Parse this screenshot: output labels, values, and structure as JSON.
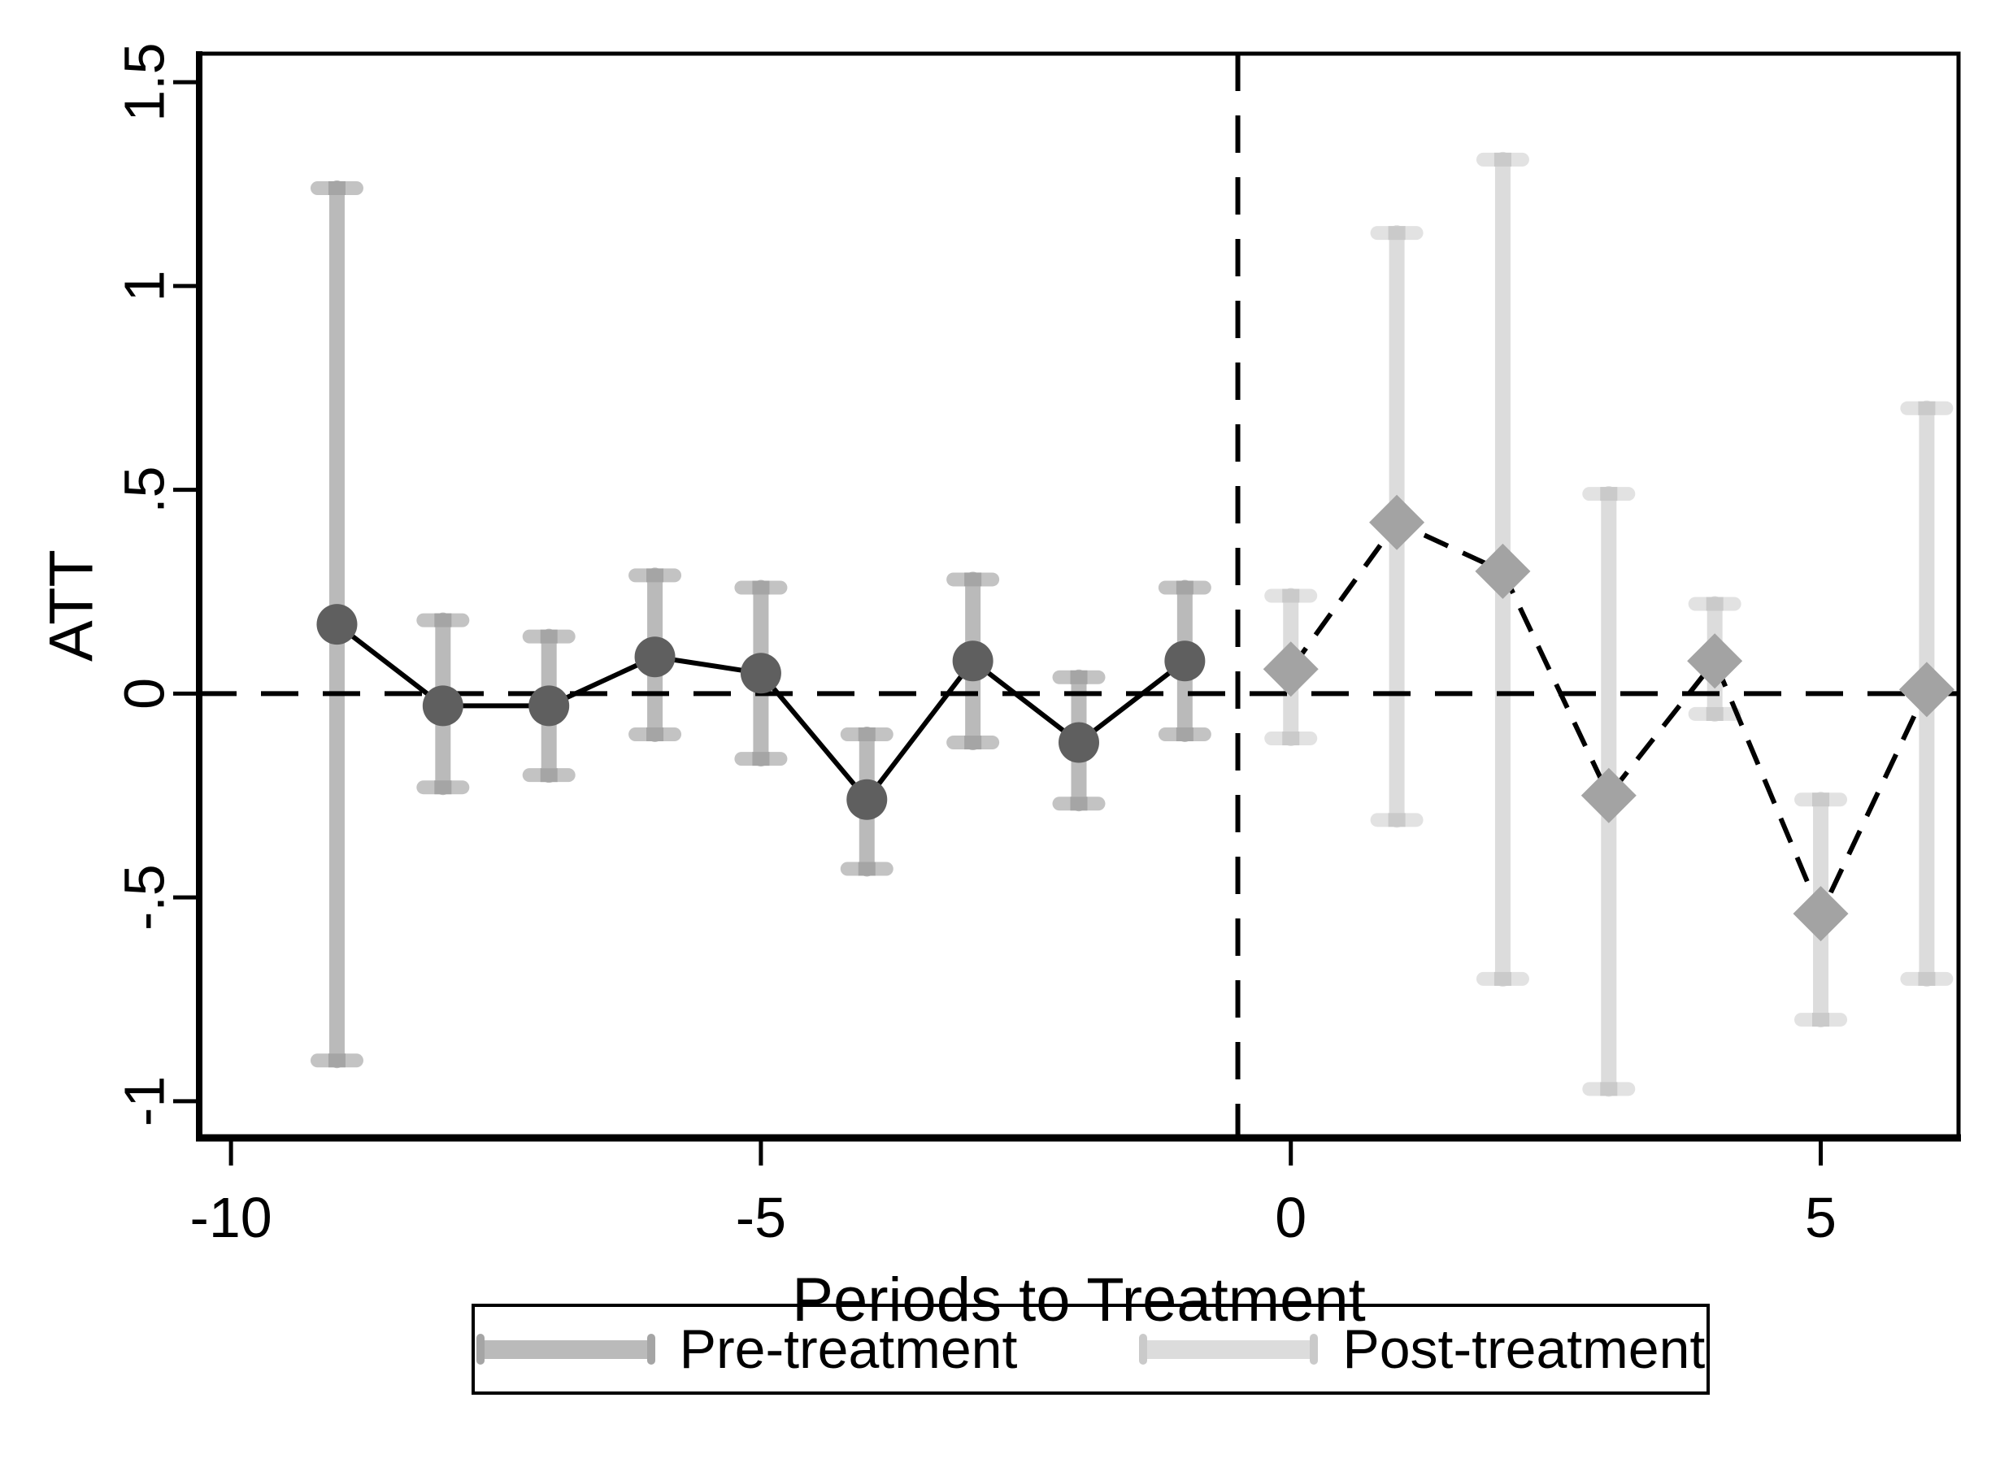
{
  "figure": {
    "ylabel": "ATT",
    "xlabel": "Periods to Treatment"
  },
  "axes": {
    "y_tick_labels": [
      "1.5",
      "1",
      ".5",
      "0",
      "-.5",
      "-1"
    ],
    "y_tick_values": [
      1.5,
      1,
      0.5,
      0,
      -0.5,
      -1
    ],
    "x_tick_labels": [
      "-10",
      "-5",
      "0",
      "5"
    ],
    "x_tick_values": [
      -10,
      -5,
      0,
      5
    ]
  },
  "legend": {
    "pre_label": "Pre-treatment",
    "post_label": "Post-treatment"
  },
  "colors": {
    "background": "#ffffff",
    "axis": "#000000",
    "text": "#000000",
    "reference_line": "#000000",
    "pre_marker": "#5f5f5f",
    "pre_line": "#000000",
    "pre_ci_bar": "#bababa",
    "pre_ci_cap": "#c3c3c3",
    "pre_ci_overlap": "#a5a5a5",
    "post_marker": "#a3a3a3",
    "post_line": "#000000",
    "post_ci_bar": "#dcdcdc",
    "post_ci_cap": "#e2e2e2",
    "post_ci_overlap": "#cacaca"
  },
  "chart_data": {
    "type": "line",
    "title": "",
    "xlabel": "Periods to Treatment",
    "ylabel": "ATT",
    "xlim": [
      -10.3,
      6.3
    ],
    "ylim": [
      -1.09,
      1.57
    ],
    "grid": false,
    "legend_position": "bottom",
    "error_bars": true,
    "reference_lines": {
      "hline_y": 0,
      "vline_x": -0.5,
      "style": "dashed"
    },
    "series": [
      {
        "name": "Pre-treatment",
        "marker": "circle",
        "line_style": "solid",
        "x": [
          -9,
          -8,
          -7,
          -6,
          -5,
          -4,
          -3,
          -2,
          -1
        ],
        "y": [
          0.17,
          -0.03,
          -0.03,
          0.09,
          0.05,
          -0.26,
          0.08,
          -0.12,
          0.08
        ],
        "ci_low": [
          -0.9,
          -0.23,
          -0.2,
          -0.1,
          -0.16,
          -0.43,
          -0.12,
          -0.27,
          -0.1
        ],
        "ci_high": [
          1.24,
          0.18,
          0.14,
          0.29,
          0.26,
          -0.1,
          0.28,
          0.04,
          0.26
        ]
      },
      {
        "name": "Post-treatment",
        "marker": "diamond",
        "line_style": "dashed",
        "x": [
          0,
          1,
          2,
          3,
          4,
          5,
          6
        ],
        "y": [
          0.06,
          0.42,
          0.3,
          -0.25,
          0.08,
          -0.54,
          0.01
        ],
        "ci_low": [
          -0.11,
          -0.31,
          -0.7,
          -0.97,
          -0.05,
          -0.8,
          -0.7
        ],
        "ci_high": [
          0.24,
          1.13,
          1.31,
          0.49,
          0.22,
          -0.26,
          0.7
        ]
      }
    ]
  }
}
